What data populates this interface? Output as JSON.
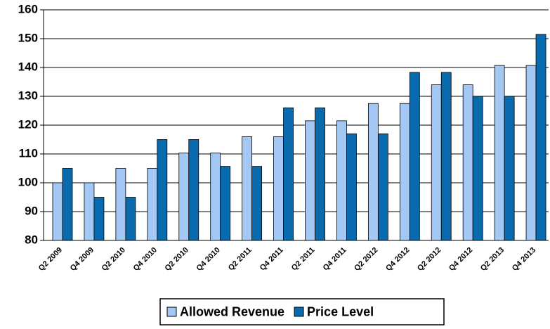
{
  "chart_data": {
    "type": "bar",
    "categories": [
      "Q2 2009",
      "Q4 2009",
      "Q2 2010",
      "Q4 2010",
      "Q2 2010",
      "Q4 2010",
      "Q2 2011",
      "Q4 2011",
      "Q2 2011",
      "Q4 2011",
      "Q2 2012",
      "Q4 2012",
      "Q2 2012",
      "Q4 2012",
      "Q2 2013",
      "Q4 2013"
    ],
    "series": [
      {
        "name": "Allowed Revenue",
        "color": "#a4c8f4",
        "values": [
          100,
          100,
          105,
          105,
          110.3,
          110.3,
          116,
          116,
          121.5,
          121.5,
          127.5,
          127.5,
          134,
          134,
          140.7,
          140.7
        ]
      },
      {
        "name": "Price Level",
        "color": "#0a6aae",
        "values": [
          105,
          95,
          95,
          115,
          115,
          105.7,
          105.7,
          126,
          126,
          117,
          117,
          138.3,
          138.3,
          130,
          130,
          151.5
        ]
      }
    ],
    "ylim": [
      80,
      160
    ],
    "yticks": [
      80,
      90,
      100,
      110,
      120,
      130,
      140,
      150,
      160
    ],
    "grid": true,
    "legend": "bottom"
  }
}
